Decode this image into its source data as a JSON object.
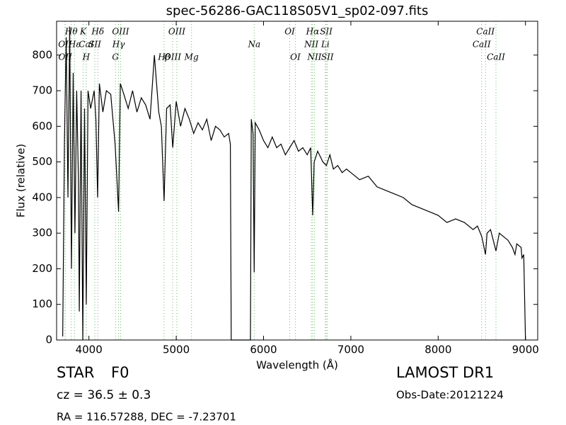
{
  "chart_data": {
    "type": "line",
    "title": "spec-56286-GAC118S05V1_sp02-097.fits",
    "x_label": "Wavelength (Å)",
    "y_label": "Flux (relative)",
    "xlim": [
      3630,
      9140
    ],
    "ylim": [
      0,
      895
    ],
    "xticks": [
      4000,
      5000,
      6000,
      7000,
      8000,
      9000
    ],
    "yticks": [
      0,
      100,
      200,
      300,
      400,
      500,
      600,
      700,
      800
    ],
    "color": "#000000",
    "line_color": "#66bb66",
    "x": [
      3700,
      3720,
      3740,
      3760,
      3780,
      3800,
      3820,
      3840,
      3860,
      3880,
      3890,
      3910,
      3930,
      3950,
      3970,
      3990,
      4020,
      4060,
      4080,
      4100,
      4120,
      4160,
      4200,
      4250,
      4300,
      4340,
      4360,
      4400,
      4450,
      4500,
      4550,
      4600,
      4650,
      4700,
      4750,
      4800,
      4830,
      4861,
      4890,
      4930,
      4960,
      5000,
      5050,
      5100,
      5150,
      5200,
      5250,
      5300,
      5350,
      5400,
      5450,
      5500,
      5550,
      5600,
      5620,
      5630,
      5850,
      5860,
      5880,
      5893,
      5905,
      5950,
      6000,
      6050,
      6100,
      6150,
      6200,
      6250,
      6300,
      6350,
      6400,
      6450,
      6500,
      6540,
      6563,
      6580,
      6620,
      6680,
      6720,
      6760,
      6800,
      6850,
      6900,
      6950,
      7000,
      7100,
      7200,
      7300,
      7400,
      7500,
      7600,
      7700,
      7800,
      7900,
      8000,
      8100,
      8200,
      8300,
      8400,
      8450,
      8500,
      8542,
      8560,
      8600,
      8662,
      8700,
      8750,
      8800,
      8850,
      8880,
      8900,
      8950,
      8960,
      8980,
      9000
    ],
    "values": [
      10,
      560,
      850,
      400,
      880,
      200,
      750,
      300,
      700,
      450,
      80,
      700,
      0,
      650,
      100,
      700,
      650,
      700,
      620,
      400,
      720,
      640,
      700,
      690,
      550,
      360,
      720,
      690,
      650,
      700,
      640,
      680,
      660,
      620,
      800,
      640,
      600,
      390,
      650,
      660,
      540,
      670,
      600,
      650,
      620,
      580,
      610,
      590,
      620,
      560,
      600,
      590,
      570,
      580,
      550,
      0,
      0,
      620,
      580,
      190,
      610,
      590,
      560,
      540,
      570,
      540,
      550,
      520,
      540,
      560,
      530,
      540,
      520,
      540,
      350,
      500,
      530,
      500,
      490,
      520,
      480,
      490,
      470,
      480,
      470,
      450,
      460,
      430,
      420,
      410,
      400,
      380,
      370,
      360,
      350,
      330,
      340,
      330,
      310,
      320,
      290,
      240,
      300,
      310,
      250,
      300,
      290,
      280,
      260,
      240,
      270,
      260,
      230,
      240,
      0
    ],
    "spectral_lines": [
      [
        {
          "label": "Hθ",
          "wavelength": 3798
        },
        {
          "label": "K",
          "wavelength": 3934
        },
        {
          "label": "Hδ",
          "wavelength": 4102
        },
        {
          "label": "OIII",
          "wavelength": 4363
        },
        {
          "label": "OIII",
          "wavelength": 5007
        },
        {
          "label": "OI",
          "wavelength": 6300
        },
        {
          "label": "Hα",
          "wavelength": 6563
        },
        {
          "label": "SII",
          "wavelength": 6717
        },
        {
          "label": "CaII",
          "wavelength": 8542
        }
      ],
      [
        {
          "label": "OII",
          "wavelength": 3727
        },
        {
          "label": "Hε",
          "wavelength": 3835
        },
        {
          "label": "CaI",
          "wavelength": 3970
        },
        {
          "label": "SII",
          "wavelength": 4068
        },
        {
          "label": "Hγ",
          "wavelength": 4340
        },
        {
          "label": "Na",
          "wavelength": 5893
        },
        {
          "label": "NII",
          "wavelength": 6548
        },
        {
          "label": "Li",
          "wavelength": 6708
        },
        {
          "label": "CaII",
          "wavelength": 8498
        }
      ],
      [
        {
          "label": "OII",
          "wavelength": 3729
        },
        {
          "label": "H",
          "wavelength": 3969
        },
        {
          "label": "G",
          "wavelength": 4304
        },
        {
          "label": "Hβ",
          "wavelength": 4861
        },
        {
          "label": "OIII",
          "wavelength": 4959
        },
        {
          "label": "Mg",
          "wavelength": 5175
        },
        {
          "label": "OI",
          "wavelength": 6364
        },
        {
          "label": "NII",
          "wavelength": 6583
        },
        {
          "label": "SII",
          "wavelength": 6731
        },
        {
          "label": "CaII",
          "wavelength": 8662
        }
      ]
    ],
    "object_class": "STAR",
    "subclass": "F0",
    "redshift": "cz = 36.5 ± 0.3",
    "coordinates": "RA = 116.57288, DEC = -7.23701",
    "survey": "LAMOST DR1",
    "obs_date": "Obs-Date:20121224"
  }
}
